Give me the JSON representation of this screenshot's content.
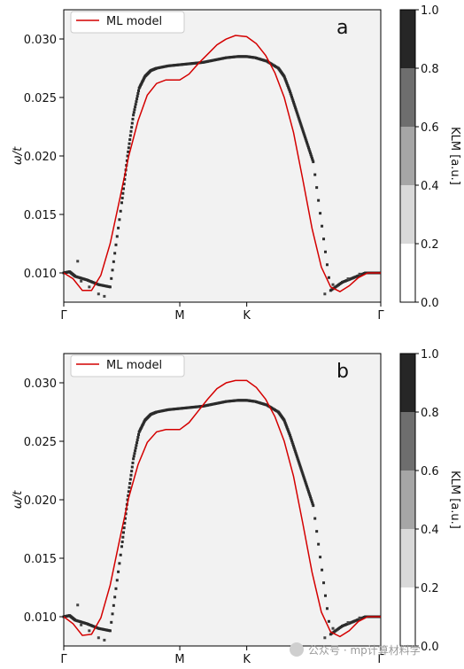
{
  "chart_data": [
    {
      "type": "line",
      "panel_label": "a",
      "ylabel": "ω/t",
      "ylim": [
        0.0075,
        0.0325
      ],
      "yticks": [
        "0.010",
        "0.015",
        "0.020",
        "0.025",
        "0.030"
      ],
      "ytick_values": [
        0.01,
        0.015,
        0.02,
        0.025,
        0.03
      ],
      "xticks": [
        "Γ",
        "M",
        "K",
        "Γ"
      ],
      "xtick_positions": [
        0,
        1,
        1.577,
        2.732
      ],
      "xlim": [
        0,
        2.732
      ],
      "legend": {
        "position": "upper-left",
        "entries": [
          "ML model"
        ]
      },
      "colorbar": {
        "label": "KLM [a.u.]",
        "ticks": [
          "0.0",
          "0.2",
          "0.4",
          "0.6",
          "0.8",
          "1.0"
        ],
        "levels": 5
      },
      "series": [
        {
          "name": "ML model",
          "color": "#d40000",
          "x": [
            0,
            0.08,
            0.16,
            0.24,
            0.32,
            0.4,
            0.48,
            0.56,
            0.64,
            0.72,
            0.8,
            0.88,
            0.96,
            1.0,
            1.08,
            1.16,
            1.24,
            1.32,
            1.4,
            1.48,
            1.577,
            1.66,
            1.74,
            1.82,
            1.9,
            1.98,
            2.06,
            2.14,
            2.22,
            2.3,
            2.38,
            2.46,
            2.54,
            2.62,
            2.7,
            2.732
          ],
          "y": [
            0.01,
            0.0095,
            0.0085,
            0.0085,
            0.0098,
            0.0125,
            0.0162,
            0.02,
            0.023,
            0.0252,
            0.0262,
            0.0265,
            0.0265,
            0.0265,
            0.027,
            0.0279,
            0.0287,
            0.0295,
            0.03,
            0.0303,
            0.0302,
            0.0296,
            0.0286,
            0.0271,
            0.025,
            0.022,
            0.018,
            0.0138,
            0.0105,
            0.0088,
            0.0084,
            0.0089,
            0.0096,
            0.01,
            0.01,
            0.01
          ]
        }
      ],
      "klm_band": {
        "x": [
          0,
          0.05,
          0.1,
          0.2,
          0.3,
          0.4,
          0.5,
          0.55,
          0.6,
          0.65,
          0.7,
          0.75,
          0.8,
          0.9,
          1.0,
          1.1,
          1.2,
          1.3,
          1.4,
          1.5,
          1.577,
          1.65,
          1.75,
          1.85,
          1.9,
          1.95,
          2.0,
          2.05,
          2.1,
          2.15,
          2.3,
          2.4,
          2.5,
          2.6,
          2.732
        ],
        "y": [
          0.01,
          0.0101,
          0.0097,
          0.0094,
          0.009,
          0.0088,
          0.016,
          0.02,
          0.0235,
          0.0258,
          0.0268,
          0.0273,
          0.0275,
          0.0277,
          0.0278,
          0.0279,
          0.028,
          0.0282,
          0.0284,
          0.0285,
          0.0285,
          0.0284,
          0.0281,
          0.0275,
          0.0268,
          0.0255,
          0.024,
          0.0225,
          0.021,
          0.0195,
          0.0085,
          0.0092,
          0.0096,
          0.01,
          0.01
        ]
      }
    },
    {
      "type": "line",
      "panel_label": "b",
      "ylabel": "ω/t",
      "ylim": [
        0.0075,
        0.0325
      ],
      "yticks": [
        "0.010",
        "0.015",
        "0.020",
        "0.025",
        "0.030"
      ],
      "ytick_values": [
        0.01,
        0.015,
        0.02,
        0.025,
        0.03
      ],
      "xticks": [
        "Γ",
        "M",
        "K",
        "Γ"
      ],
      "xtick_positions": [
        0,
        1,
        1.577,
        2.732
      ],
      "xlim": [
        0,
        2.732
      ],
      "legend": {
        "position": "upper-left",
        "entries": [
          "ML model"
        ]
      },
      "colorbar": {
        "label": "KLM [a.u.]",
        "ticks": [
          "0.0",
          "0.2",
          "0.4",
          "0.6",
          "0.8",
          "1.0"
        ],
        "levels": 5
      },
      "series": [
        {
          "name": "ML model",
          "color": "#d40000",
          "x": [
            0,
            0.08,
            0.16,
            0.24,
            0.32,
            0.4,
            0.48,
            0.56,
            0.64,
            0.72,
            0.8,
            0.88,
            0.96,
            1.0,
            1.08,
            1.16,
            1.24,
            1.32,
            1.4,
            1.48,
            1.577,
            1.66,
            1.74,
            1.82,
            1.9,
            1.98,
            2.06,
            2.14,
            2.22,
            2.3,
            2.38,
            2.46,
            2.54,
            2.62,
            2.7,
            2.732
          ],
          "y": [
            0.01,
            0.0094,
            0.0084,
            0.0085,
            0.0099,
            0.0127,
            0.0165,
            0.0202,
            0.023,
            0.0249,
            0.0258,
            0.026,
            0.026,
            0.026,
            0.0266,
            0.0276,
            0.0286,
            0.0295,
            0.03,
            0.0302,
            0.0302,
            0.0296,
            0.0286,
            0.0271,
            0.025,
            0.022,
            0.018,
            0.0138,
            0.0104,
            0.0087,
            0.0083,
            0.0088,
            0.0096,
            0.01,
            0.01,
            0.01
          ]
        }
      ],
      "klm_band": {
        "x": [
          0,
          0.05,
          0.1,
          0.2,
          0.3,
          0.4,
          0.5,
          0.55,
          0.6,
          0.65,
          0.7,
          0.75,
          0.8,
          0.9,
          1.0,
          1.1,
          1.2,
          1.3,
          1.4,
          1.5,
          1.577,
          1.65,
          1.75,
          1.85,
          1.9,
          1.95,
          2.0,
          2.05,
          2.1,
          2.15,
          2.3,
          2.4,
          2.5,
          2.6,
          2.732
        ],
        "y": [
          0.01,
          0.0101,
          0.0097,
          0.0094,
          0.009,
          0.0088,
          0.016,
          0.02,
          0.0235,
          0.0258,
          0.0268,
          0.0273,
          0.0275,
          0.0277,
          0.0278,
          0.0279,
          0.028,
          0.0282,
          0.0284,
          0.0285,
          0.0285,
          0.0284,
          0.0281,
          0.0275,
          0.0268,
          0.0255,
          0.024,
          0.0225,
          0.021,
          0.0195,
          0.0085,
          0.0092,
          0.0096,
          0.01,
          0.01
        ]
      }
    }
  ],
  "watermark": {
    "text": "公众号 · mp计算材料学"
  }
}
